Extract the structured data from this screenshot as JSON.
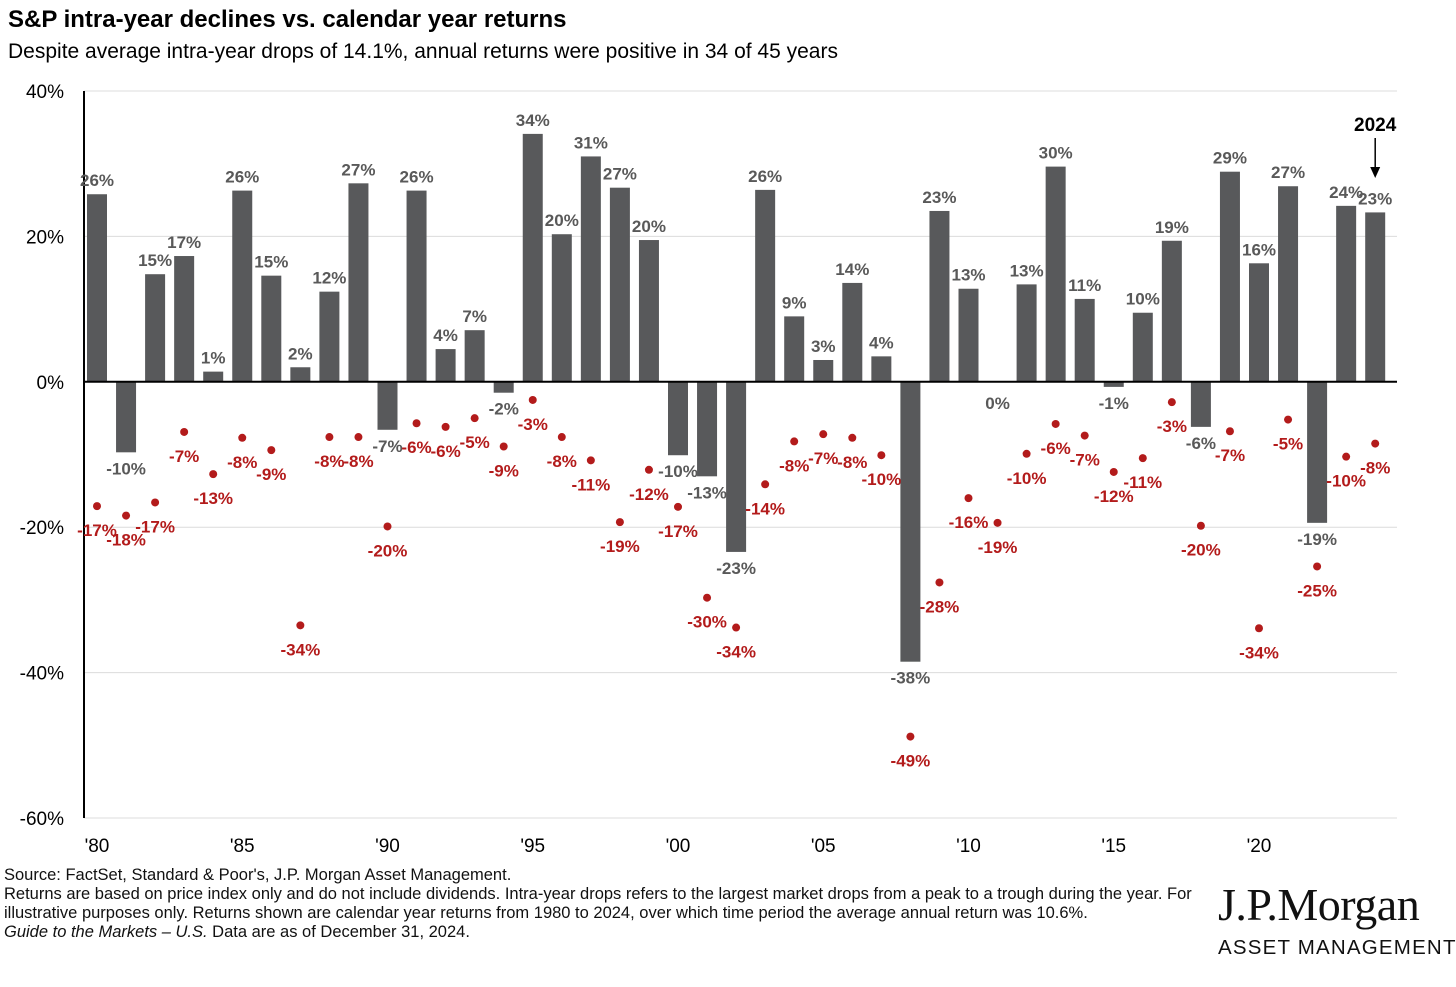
{
  "title": "S&P intra-year declines vs. calendar year returns",
  "subtitle": "Despite average intra-year drops of 14.1%, annual returns were positive in 34 of 45 years",
  "chart_data": {
    "type": "bar",
    "x": [
      1980,
      1981,
      1982,
      1983,
      1984,
      1985,
      1986,
      1987,
      1988,
      1989,
      1990,
      1991,
      1992,
      1993,
      1994,
      1995,
      1996,
      1997,
      1998,
      1999,
      2000,
      2001,
      2002,
      2003,
      2004,
      2005,
      2006,
      2007,
      2008,
      2009,
      2010,
      2011,
      2012,
      2013,
      2014,
      2015,
      2016,
      2017,
      2018,
      2019,
      2020,
      2021,
      2022,
      2023,
      2024
    ],
    "series": [
      {
        "kind": "bar",
        "color": "#58595b",
        "values": [
          25.8,
          -9.7,
          14.8,
          17.3,
          1.4,
          26.3,
          14.6,
          2.0,
          12.4,
          27.3,
          -6.6,
          26.3,
          4.5,
          7.1,
          -1.5,
          34.1,
          20.3,
          31.0,
          26.7,
          19.5,
          -10.1,
          -13.0,
          -23.4,
          26.4,
          9.0,
          3.0,
          13.6,
          3.5,
          -38.5,
          23.5,
          12.8,
          0.0,
          13.4,
          29.6,
          11.4,
          -0.7,
          9.5,
          19.4,
          -6.2,
          28.9,
          16.3,
          26.9,
          -19.4,
          24.2,
          23.3
        ],
        "labels": [
          "26%",
          "-10%",
          "15%",
          "17%",
          "1%",
          "26%",
          "15%",
          "2%",
          "12%",
          "27%",
          "-7%",
          "26%",
          "4%",
          "7%",
          "-2%",
          "34%",
          "20%",
          "31%",
          "27%",
          "20%",
          "-10%",
          "-13%",
          "-23%",
          "26%",
          "9%",
          "3%",
          "14%",
          "4%",
          "-38%",
          "23%",
          "13%",
          "0%",
          "13%",
          "30%",
          "11%",
          "-1%",
          "10%",
          "19%",
          "-6%",
          "29%",
          "16%",
          "27%",
          "-19%",
          "24%",
          "23%"
        ]
      },
      {
        "kind": "dot",
        "color": "#b31b1b",
        "values": [
          -17.1,
          -18.4,
          -16.6,
          -6.9,
          -12.7,
          -7.7,
          -9.4,
          -33.5,
          -7.6,
          -7.6,
          -19.9,
          -5.7,
          -6.2,
          -5.0,
          -8.9,
          -2.5,
          -7.6,
          -10.8,
          -19.3,
          -12.1,
          -17.2,
          -29.7,
          -33.8,
          -14.1,
          -8.2,
          -7.2,
          -7.7,
          -10.1,
          -48.8,
          -27.6,
          -16.0,
          -19.4,
          -9.9,
          -5.8,
          -7.4,
          -12.4,
          -10.5,
          -2.8,
          -19.8,
          -6.8,
          -33.9,
          -5.2,
          -25.4,
          -10.3,
          -8.5
        ],
        "labels": [
          "-17%",
          "-18%",
          "-17%",
          "-7%",
          "-13%",
          "-8%",
          "-9%",
          "-34%",
          "-8%",
          "-8%",
          "-20%",
          "-6%",
          "-6%",
          "-5%",
          "-9%",
          "-3%",
          "-8%",
          "-11%",
          "-19%",
          "-12%",
          "-17%",
          "-30%",
          "-34%",
          "-14%",
          "-8%",
          "-7%",
          "-8%",
          "-10%",
          "-49%",
          "-28%",
          "-16%",
          "-19%",
          "-10%",
          "-6%",
          "-7%",
          "-12%",
          "-11%",
          "-3%",
          "-20%",
          "-7%",
          "-34%",
          "-5%",
          "-25%",
          "-10%",
          "-8%"
        ]
      }
    ],
    "ylim": [
      -60,
      40
    ],
    "yticks": [
      40,
      20,
      0,
      -20,
      -40,
      -60
    ],
    "ytick_labels": [
      "40%",
      "20%",
      "0%",
      "-20%",
      "-40%",
      "-60%"
    ],
    "xticks": [
      1980,
      1985,
      1990,
      1995,
      2000,
      2005,
      2010,
      2015,
      2020
    ],
    "xtick_labels": [
      "'80",
      "'85",
      "'90",
      "'95",
      "'00",
      "'05",
      "'10",
      "'15",
      "'20"
    ],
    "annotation": {
      "text": "2024",
      "year": 2024
    },
    "grid": true
  },
  "footer": {
    "source": "Source: FactSet, Standard & Poor's, J.P. Morgan Asset Management.",
    "note": "Returns are based on price index only and do not include dividends. Intra-year drops refers to the largest market drops from a peak to a trough during the year. For illustrative purposes only. Returns shown are calendar year returns from 1980 to 2024, over which time period the average annual return was 10.6%.",
    "guide_italic": "Guide to the Markets – U.S.",
    "guide_rest": " Data are as of December 31, 2024."
  },
  "logo": {
    "main": "J.P.Morgan",
    "sub": "ASSET MANAGEMENT"
  }
}
